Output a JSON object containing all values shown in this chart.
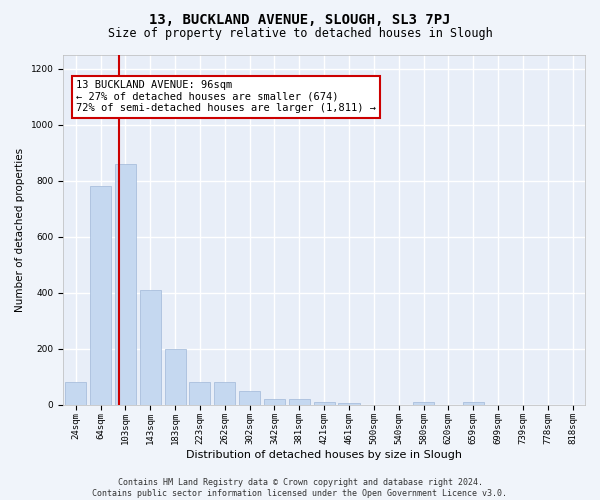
{
  "title": "13, BUCKLAND AVENUE, SLOUGH, SL3 7PJ",
  "subtitle": "Size of property relative to detached houses in Slough",
  "xlabel": "Distribution of detached houses by size in Slough",
  "ylabel": "Number of detached properties",
  "categories": [
    "24sqm",
    "64sqm",
    "103sqm",
    "143sqm",
    "183sqm",
    "223sqm",
    "262sqm",
    "302sqm",
    "342sqm",
    "381sqm",
    "421sqm",
    "461sqm",
    "500sqm",
    "540sqm",
    "580sqm",
    "620sqm",
    "659sqm",
    "699sqm",
    "739sqm",
    "778sqm",
    "818sqm"
  ],
  "values": [
    80,
    780,
    860,
    410,
    200,
    80,
    80,
    50,
    20,
    20,
    10,
    5,
    0,
    0,
    10,
    0,
    10,
    0,
    0,
    0,
    0
  ],
  "bar_color": "#c5d8f0",
  "bar_edge_color": "#a0b8d8",
  "ylim": [
    0,
    1250
  ],
  "yticks": [
    0,
    200,
    400,
    600,
    800,
    1000,
    1200
  ],
  "vline_x": 1.75,
  "vline_color": "#cc0000",
  "annotation_text": "13 BUCKLAND AVENUE: 96sqm\n← 27% of detached houses are smaller (674)\n72% of semi-detached houses are larger (1,811) →",
  "annotation_box_color": "#ffffff",
  "annotation_box_edgecolor": "#cc0000",
  "footer_text": "Contains HM Land Registry data © Crown copyright and database right 2024.\nContains public sector information licensed under the Open Government Licence v3.0.",
  "bg_color": "#f0f4fa",
  "plot_bg_color": "#e8eef8",
  "title_fontsize": 10,
  "subtitle_fontsize": 8.5,
  "xlabel_fontsize": 8,
  "ylabel_fontsize": 7.5,
  "tick_fontsize": 6.5,
  "annotation_fontsize": 7.5,
  "footer_fontsize": 6
}
